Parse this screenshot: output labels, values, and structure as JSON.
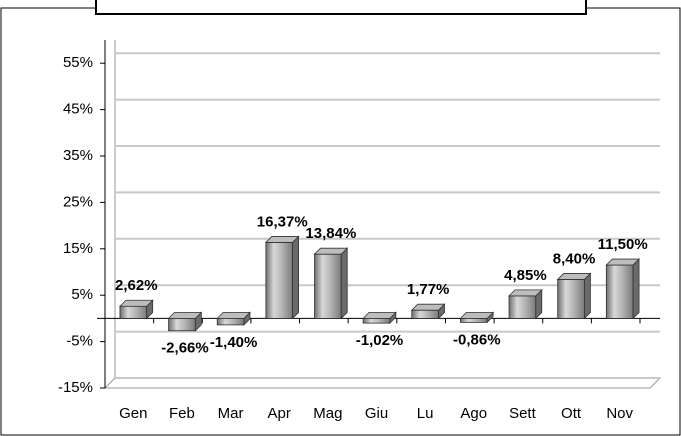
{
  "chart_data": {
    "type": "bar3d",
    "categories": [
      "Gen",
      "Feb",
      "Mar",
      "Apr",
      "Mag",
      "Giu",
      "Lu",
      "Ago",
      "Sett",
      "Ott",
      "Nov"
    ],
    "values": [
      2.62,
      -2.66,
      -1.4,
      16.37,
      13.84,
      -1.02,
      1.77,
      -0.86,
      4.85,
      8.4,
      11.5
    ],
    "value_labels": [
      "2,62%",
      "-2,66%",
      "-1,40%",
      "16,37%",
      "13,84%",
      "-1,02%",
      "1,77%",
      "-0,86%",
      "4,85%",
      "8,40%",
      "11,50%"
    ],
    "color": "#9a9a9a",
    "ylim": [
      -15,
      60
    ],
    "yticks": [
      {
        "value": -15,
        "label": "-15%"
      },
      {
        "value": -5,
        "label": "-5%"
      },
      {
        "value": 5,
        "label": "5%"
      },
      {
        "value": 15,
        "label": "15%"
      },
      {
        "value": 25,
        "label": "25%"
      },
      {
        "value": 35,
        "label": "35%"
      },
      {
        "value": 45,
        "label": "45%"
      },
      {
        "value": 55,
        "label": "55%"
      }
    ],
    "grid": true
  }
}
